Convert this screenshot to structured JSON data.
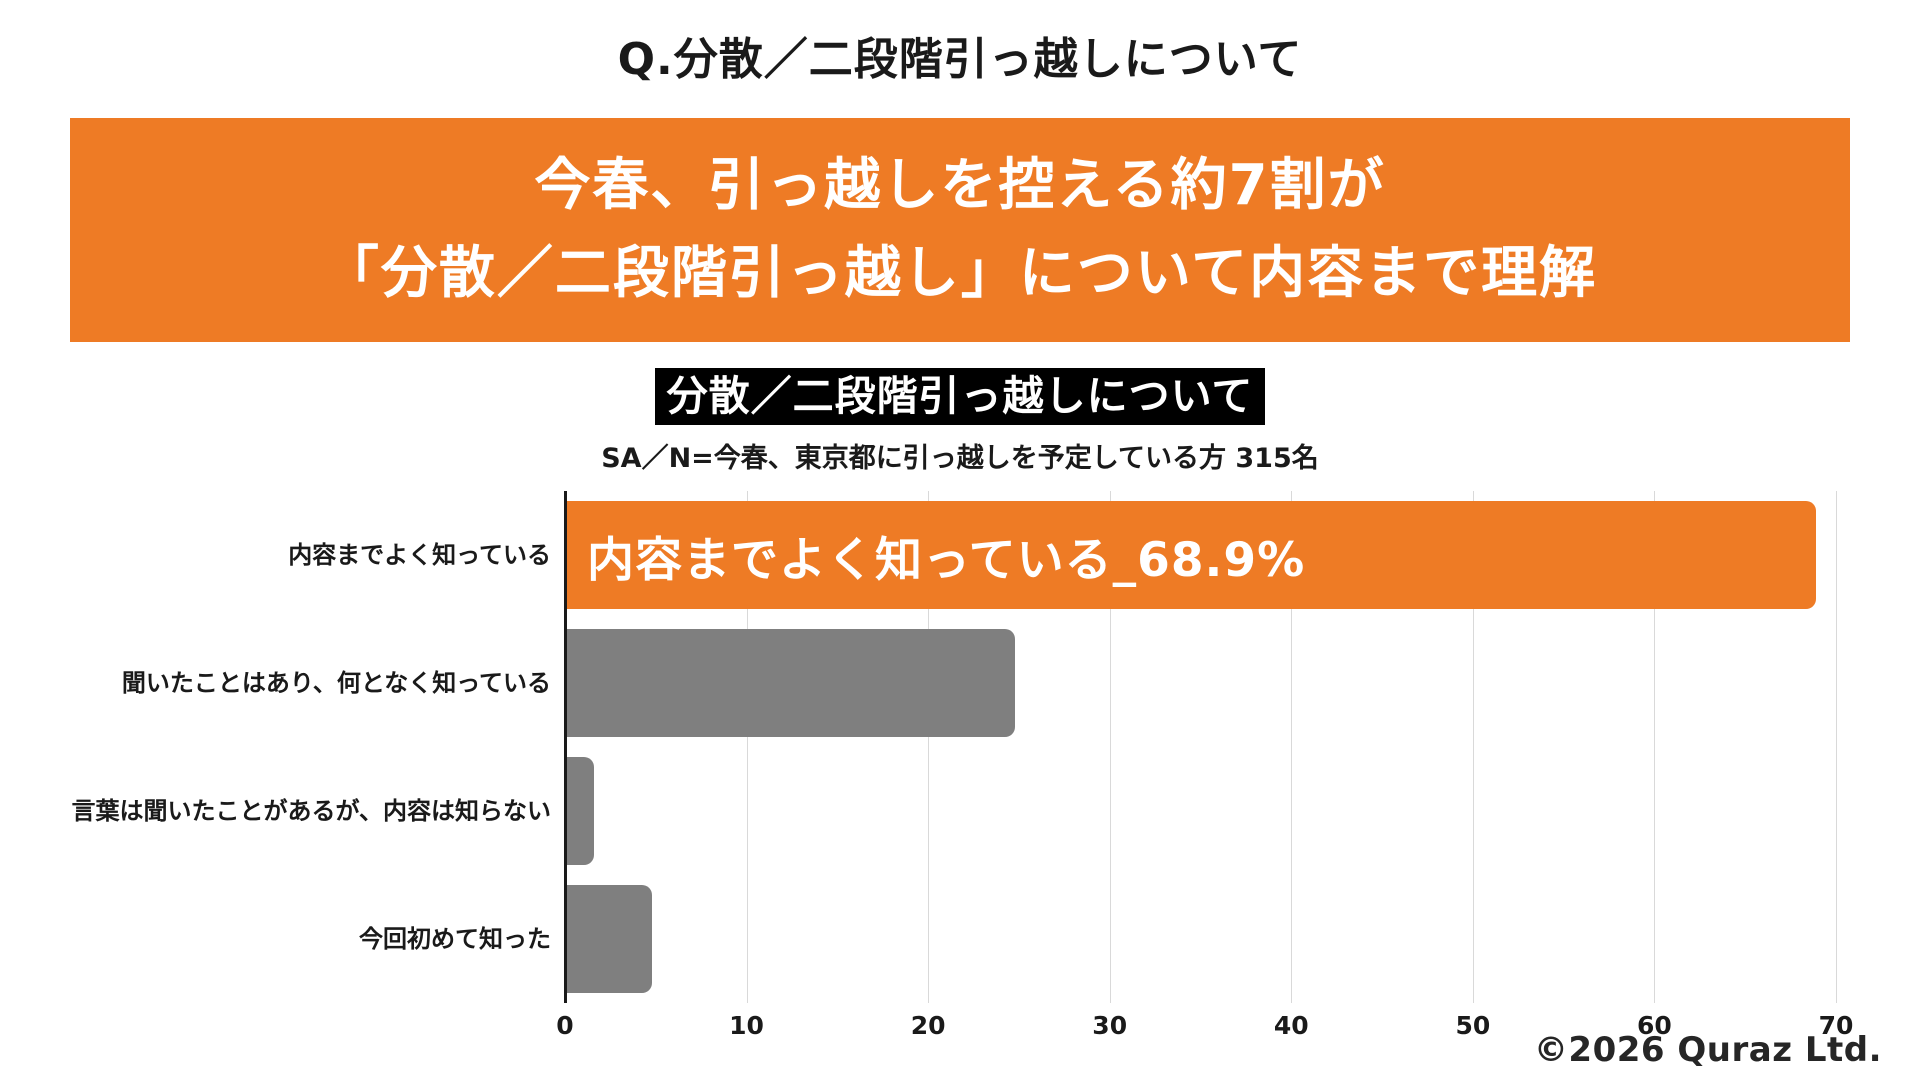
{
  "page": {
    "question_title": "Q.分散／二段階引っ越しについて",
    "banner": {
      "line1": "今春、引っ越しを控える約7割が",
      "line2": "「分散／二段階引っ越し」について内容まで理解"
    },
    "chart_heading": "分散／二段階引っ越しについて",
    "sample_note": "SA／N=今春、東京都に引っ越しを予定している方 315名",
    "copyright": "©2026 Quraz Ltd."
  },
  "colors": {
    "accent-orange": "#EE7B25",
    "bar-gray": "#7F7F7F",
    "grid-line": "#D9D9D9",
    "axis-line": "#1A1A1A",
    "text-black": "#1A1A1A"
  },
  "chart_data": {
    "type": "bar",
    "orientation": "horizontal",
    "title": "分散／二段階引っ越しについて",
    "subtitle": "SA／N=今春、東京都に引っ越しを予定している方 315名",
    "categories": [
      "内容までよく知っている",
      "聞いたことはあり、何となく知っている",
      "言葉は聞いたことがあるが、内容は知らない",
      "今回初めて知った"
    ],
    "values": [
      68.9,
      24.8,
      1.6,
      4.8
    ],
    "bar_colors": [
      "#EE7B25",
      "#7F7F7F",
      "#7F7F7F",
      "#7F7F7F"
    ],
    "data_label_on_bar_0": "内容までよく知っている_68.9%",
    "unit": "%",
    "xlim": [
      0,
      70
    ],
    "xticks": [
      0,
      10,
      20,
      30,
      40,
      50,
      60,
      70
    ],
    "grid": true,
    "legend": false
  }
}
